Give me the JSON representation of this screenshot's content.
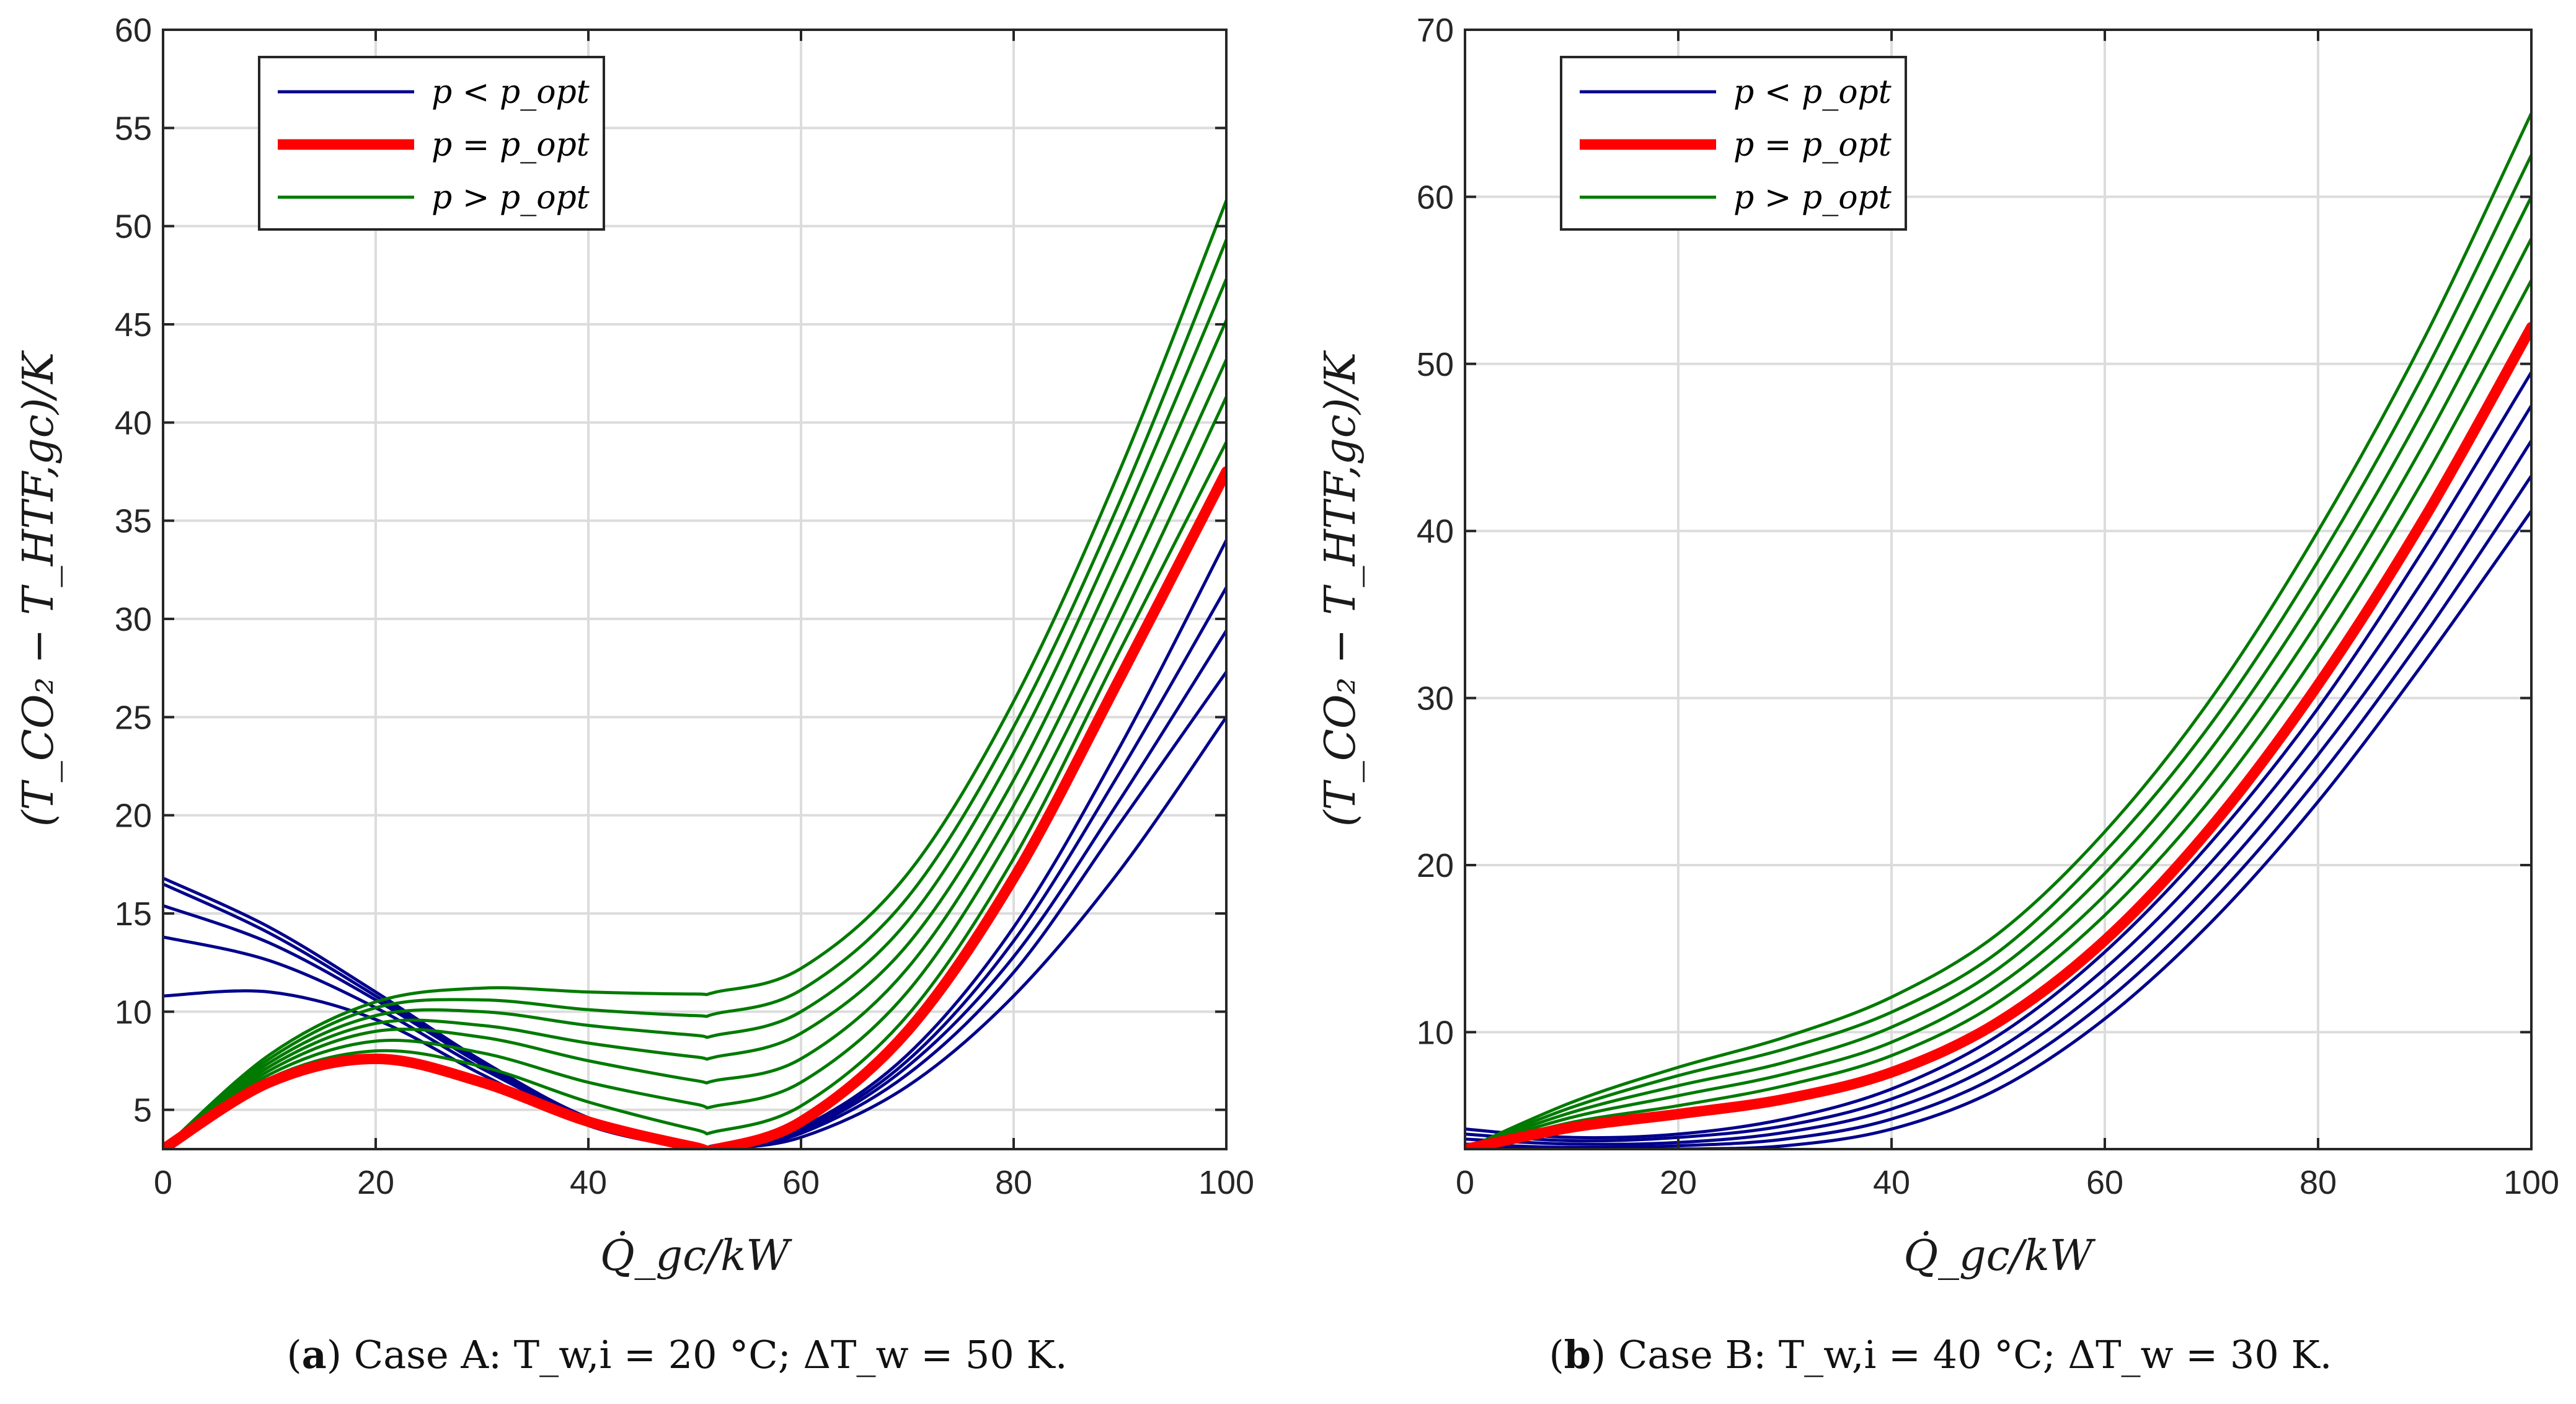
{
  "chart_data": [
    {
      "type": "line",
      "panel_label": "a",
      "caption": "Case A: T_w,i = 20 °C; ΔT_w = 50 K.",
      "xlabel": "Q̇_gc/kW",
      "ylabel": "(T_CO₂ − T_HTF,gc)/K",
      "xlim": [
        0,
        100
      ],
      "ylim": [
        3,
        60
      ],
      "xticks": [
        0,
        20,
        40,
        60,
        80,
        100
      ],
      "yticks": [
        5,
        10,
        15,
        20,
        25,
        30,
        35,
        40,
        45,
        50,
        55,
        60
      ],
      "grid": true,
      "legend_position": "top-left",
      "legend": [
        {
          "label": "p < p_opt",
          "color": "#00008b"
        },
        {
          "label": "p = p_opt",
          "color": "#ff0000"
        },
        {
          "label": "p > p_opt",
          "color": "#007a00"
        }
      ],
      "x": [
        0,
        10,
        20,
        30,
        40,
        50,
        52,
        60,
        70,
        80,
        90,
        100
      ],
      "series": [
        {
          "name": "p < p_opt",
          "group": "low",
          "values": [
            10.8,
            11.0,
            9.6,
            6.8,
            4.2,
            3.0,
            3.0,
            3.6,
            6.2,
            10.8,
            17.2,
            25.0
          ]
        },
        {
          "name": "p < p_opt",
          "group": "low",
          "values": [
            13.8,
            12.6,
            10.2,
            7.1,
            4.5,
            3.0,
            3.0,
            3.8,
            6.8,
            12.0,
            19.6,
            27.3
          ]
        },
        {
          "name": "p < p_opt",
          "group": "low",
          "values": [
            15.4,
            13.5,
            10.6,
            7.3,
            4.4,
            3.1,
            3.1,
            3.9,
            7.2,
            12.8,
            20.8,
            29.4
          ]
        },
        {
          "name": "p < p_opt",
          "group": "low",
          "values": [
            16.5,
            14.0,
            10.8,
            7.4,
            4.5,
            3.1,
            3.1,
            4.0,
            7.5,
            13.6,
            22.2,
            31.6
          ]
        },
        {
          "name": "p < p_opt",
          "group": "low",
          "values": [
            16.8,
            14.3,
            11.0,
            7.5,
            4.6,
            3.2,
            3.2,
            4.1,
            7.8,
            14.3,
            23.5,
            34.0
          ]
        },
        {
          "name": "p = p_opt",
          "group": "opt",
          "values": [
            3.0,
            6.4,
            7.6,
            6.4,
            4.4,
            3.1,
            3.0,
            4.4,
            9.0,
            16.8,
            27.0,
            37.5
          ]
        },
        {
          "name": "p > p_opt",
          "group": "high",
          "values": [
            3.0,
            6.6,
            8.0,
            7.2,
            5.4,
            4.0,
            3.9,
            5.2,
            9.8,
            17.8,
            28.4,
            39.0
          ]
        },
        {
          "name": "p > p_opt",
          "group": "high",
          "values": [
            3.0,
            6.8,
            8.5,
            7.9,
            6.4,
            5.3,
            5.2,
            6.4,
            11.0,
            19.2,
            29.8,
            41.3
          ]
        },
        {
          "name": "p > p_opt",
          "group": "high",
          "values": [
            3.0,
            7.0,
            9.0,
            8.7,
            7.5,
            6.5,
            6.5,
            7.6,
            12.2,
            20.5,
            31.4,
            43.2
          ]
        },
        {
          "name": "p > p_opt",
          "group": "high",
          "values": [
            3.0,
            7.2,
            9.4,
            9.3,
            8.4,
            7.7,
            7.7,
            8.9,
            13.4,
            21.8,
            33.0,
            45.2
          ]
        },
        {
          "name": "p > p_opt",
          "group": "high",
          "values": [
            3.0,
            7.4,
            9.8,
            10.0,
            9.3,
            8.8,
            8.8,
            10.0,
            14.6,
            23.2,
            34.6,
            47.3
          ]
        },
        {
          "name": "p > p_opt",
          "group": "high",
          "values": [
            3.0,
            7.6,
            10.2,
            10.6,
            10.1,
            9.8,
            9.9,
            11.1,
            15.8,
            24.5,
            36.0,
            49.3
          ]
        },
        {
          "name": "p > p_opt",
          "group": "high",
          "values": [
            3.0,
            7.8,
            10.5,
            11.2,
            11.0,
            10.9,
            11.0,
            12.2,
            17.0,
            25.8,
            37.6,
            51.3
          ]
        }
      ]
    },
    {
      "type": "line",
      "panel_label": "b",
      "caption": "Case B: T_w,i = 40 °C; ΔT_w = 30 K.",
      "xlabel": "Q̇_gc/kW",
      "ylabel": "(T_CO₂ − T_HTF,gc)/K",
      "xlim": [
        0,
        100
      ],
      "ylim": [
        3,
        70
      ],
      "xticks": [
        0,
        20,
        40,
        60,
        80,
        100
      ],
      "yticks": [
        10,
        20,
        30,
        40,
        50,
        60,
        70
      ],
      "grid": true,
      "legend_position": "top-left",
      "legend": [
        {
          "label": "p < p_opt",
          "color": "#00008b"
        },
        {
          "label": "p = p_opt",
          "color": "#ff0000"
        },
        {
          "label": "p > p_opt",
          "color": "#007a00"
        }
      ],
      "x": [
        0,
        10,
        20,
        30,
        40,
        50,
        60,
        70,
        80,
        90,
        100
      ],
      "series": [
        {
          "name": "p < p_opt",
          "group": "low",
          "values": [
            3.1,
            3.0,
            3.0,
            3.2,
            4.2,
            6.6,
            10.8,
            16.6,
            23.8,
            32.2,
            41.2
          ]
        },
        {
          "name": "p < p_opt",
          "group": "low",
          "values": [
            3.3,
            3.1,
            3.2,
            3.6,
            4.8,
            7.4,
            11.8,
            17.8,
            25.2,
            33.8,
            43.3
          ]
        },
        {
          "name": "p < p_opt",
          "group": "low",
          "values": [
            3.6,
            3.3,
            3.4,
            4.0,
            5.4,
            8.2,
            12.8,
            19.0,
            26.6,
            35.4,
            45.4
          ]
        },
        {
          "name": "p < p_opt",
          "group": "low",
          "values": [
            3.9,
            3.5,
            3.7,
            4.4,
            6.0,
            9.0,
            13.8,
            20.2,
            28.0,
            37.2,
            47.5
          ]
        },
        {
          "name": "p < p_opt",
          "group": "low",
          "values": [
            4.2,
            3.7,
            3.9,
            4.8,
            6.6,
            9.8,
            14.8,
            21.4,
            29.4,
            39.0,
            49.5
          ]
        },
        {
          "name": "p = p_opt",
          "group": "opt",
          "values": [
            3.0,
            4.3,
            5.1,
            6.0,
            7.6,
            10.6,
            15.5,
            22.3,
            30.8,
            40.8,
            52.2
          ]
        },
        {
          "name": "p > p_opt",
          "group": "high",
          "values": [
            3.0,
            4.6,
            5.6,
            6.8,
            8.6,
            11.8,
            17.0,
            24.0,
            32.8,
            43.2,
            55.0
          ]
        },
        {
          "name": "p > p_opt",
          "group": "high",
          "values": [
            3.0,
            4.9,
            6.2,
            7.5,
            9.4,
            12.8,
            18.2,
            25.5,
            34.6,
            45.3,
            57.5
          ]
        },
        {
          "name": "p > p_opt",
          "group": "high",
          "values": [
            3.0,
            5.2,
            6.8,
            8.2,
            10.3,
            13.8,
            19.5,
            27.0,
            36.4,
            47.4,
            60.0
          ]
        },
        {
          "name": "p > p_opt",
          "group": "high",
          "values": [
            3.0,
            5.5,
            7.4,
            9.0,
            11.2,
            14.8,
            20.8,
            28.5,
            38.2,
            49.5,
            62.5
          ]
        },
        {
          "name": "p > p_opt",
          "group": "high",
          "values": [
            3.0,
            5.8,
            7.9,
            9.7,
            12.1,
            15.9,
            22.0,
            30.0,
            40.0,
            51.6,
            65.0
          ]
        }
      ]
    }
  ]
}
